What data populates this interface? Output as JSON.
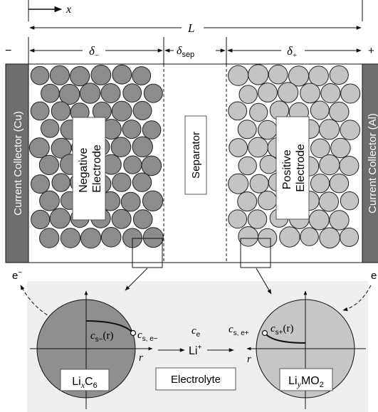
{
  "top": {
    "x_axis_label": "x",
    "length_label": "L",
    "minus_sign": "−",
    "plus_sign": "+",
    "delta_neg": "δ",
    "delta_neg_sub": "−",
    "delta_sep": "δ",
    "delta_sep_sub": "sep",
    "delta_pos": "δ",
    "delta_pos_sub": "+"
  },
  "cell": {
    "collector_left": "Current Collector (Cu)",
    "collector_right": "Current Collector (Al)",
    "negative_line1": "Negative",
    "negative_line2": "Electrode",
    "separator": "Separator",
    "positive_line1": "Positive",
    "positive_line2": "Electrode"
  },
  "bottom": {
    "electron_left": "e",
    "electron_left_sup": "−",
    "electron_right": "e",
    "neg_particle_formula": "Li",
    "neg_particle_x": "x",
    "neg_particle_c": "C",
    "neg_particle_sub": "6",
    "pos_particle_formula": "Li",
    "pos_particle_y": "y",
    "pos_particle_mo": "MO",
    "pos_particle_sub": "2",
    "cs_neg_c": "c",
    "cs_neg_sub": "s−",
    "cs_neg_arg": "(r)",
    "cs_e_neg_c": "c",
    "cs_e_neg_sub": "s, e−",
    "ce_c": "c",
    "ce_sub": "e",
    "cs_e_pos_c": "c",
    "cs_e_pos_sub": "s, e+",
    "cs_pos_c": "c",
    "cs_pos_sub": "s+",
    "cs_pos_arg": "(r)",
    "li_ion": "Li",
    "li_ion_sup": "+",
    "r_left": "r",
    "r_right": "r",
    "electrolyte": "Electrolyte"
  },
  "colors": {
    "collector": "#6e6e6e",
    "negative_particle": "#8c8c8c",
    "positive_particle": "#c4c4c4",
    "zoom_panel": "#efefef",
    "neg_big_particle": "#8f8f8f",
    "pos_big_particle": "#c6c6c6"
  }
}
